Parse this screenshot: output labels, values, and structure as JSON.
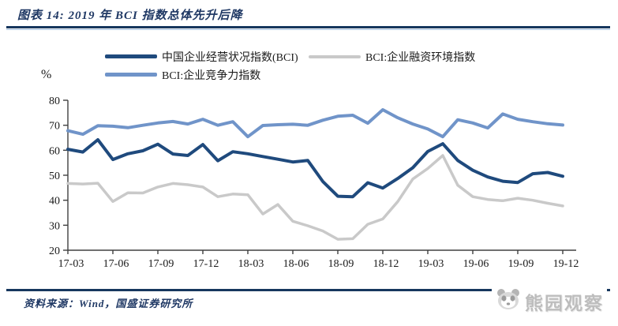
{
  "header": {
    "title": "图表 14: 2019 年 BCI 指数总体先升后降"
  },
  "footer": {
    "source": "资料来源：Wind，国盛证券研究所",
    "watermark": "熊园观察",
    "watermark_icon": "panda-icon"
  },
  "colors": {
    "navy_rule": "#17375e",
    "title_text": "#1f3864",
    "series_bci": "#1f4a7d",
    "series_financing": "#c9c9c9",
    "series_competitiveness": "#7094c9",
    "axis": "#404040"
  },
  "chart_data": {
    "type": "line",
    "title": "",
    "ylabel": "%",
    "ylim": [
      20,
      80
    ],
    "yticks": [
      20,
      30,
      40,
      50,
      60,
      70,
      80
    ],
    "grid": false,
    "legend_position": "top",
    "x": [
      "17-03",
      "17-04",
      "17-05",
      "17-06",
      "17-07",
      "17-08",
      "17-09",
      "17-10",
      "17-11",
      "17-12",
      "18-01",
      "18-02",
      "18-03",
      "18-04",
      "18-05",
      "18-06",
      "18-07",
      "18-08",
      "18-09",
      "18-10",
      "18-11",
      "18-12",
      "19-01",
      "19-02",
      "19-03",
      "19-04",
      "19-05",
      "19-06",
      "19-07",
      "19-08",
      "19-09",
      "19-10",
      "19-11",
      "19-12"
    ],
    "tick_labels": [
      "17-03",
      "17-06",
      "17-09",
      "17-12",
      "18-03",
      "18-06",
      "18-09",
      "18-12",
      "19-03",
      "19-06",
      "19-09",
      "19-12"
    ],
    "series": [
      {
        "name": "中国企业经营状况指数(BCI)",
        "color": "#1f4a7d",
        "line_width": 4,
        "values": [
          60.4,
          59.3,
          64.2,
          56.3,
          58.6,
          59.8,
          62.4,
          58.5,
          57.9,
          62.3,
          55.8,
          59.4,
          58.6,
          57.5,
          56.4,
          55.3,
          55.9,
          47.5,
          41.6,
          41.4,
          47.0,
          44.9,
          48.7,
          53.0,
          59.5,
          62.6,
          55.9,
          52.0,
          49.3,
          47.6,
          47.1,
          50.6,
          51.1,
          49.6
        ]
      },
      {
        "name": "BCI:企业融资环境指数",
        "color": "#c9c9c9",
        "line_width": 3.5,
        "values": [
          46.7,
          46.5,
          46.8,
          39.5,
          43.0,
          42.9,
          45.3,
          46.7,
          46.2,
          45.3,
          41.4,
          42.5,
          42.2,
          34.5,
          38.3,
          31.6,
          29.8,
          27.7,
          24.4,
          24.6,
          30.4,
          32.5,
          39.5,
          48.5,
          52.7,
          57.9,
          46.0,
          41.4,
          40.3,
          39.8,
          40.8,
          40.0,
          38.8,
          37.7
        ]
      },
      {
        "name": "BCI:企业竞争力指数",
        "color": "#7094c9",
        "line_width": 4,
        "values": [
          67.8,
          66.4,
          69.8,
          69.6,
          69.0,
          70.0,
          70.9,
          71.5,
          70.5,
          72.4,
          70.0,
          71.4,
          65.4,
          69.9,
          70.2,
          70.4,
          70.0,
          72.0,
          73.6,
          74.0,
          70.8,
          76.2,
          73.0,
          70.5,
          68.5,
          65.4,
          72.2,
          70.9,
          68.9,
          74.5,
          72.4,
          71.4,
          70.6,
          70.1
        ]
      }
    ]
  }
}
